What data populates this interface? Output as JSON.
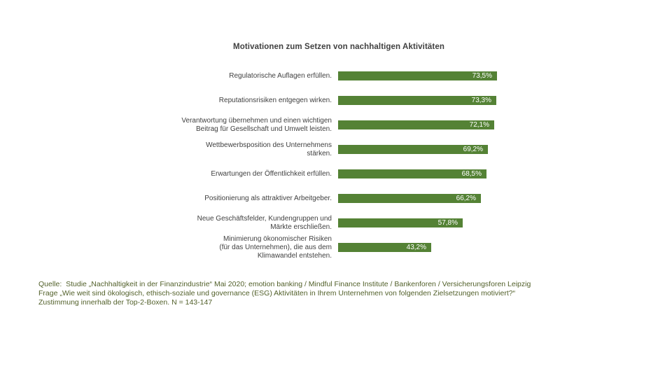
{
  "title": "Motivationen zum Setzen von nachhaltigen Aktivitäten",
  "chart_data": {
    "type": "bar",
    "orientation": "horizontal",
    "bar_color": "#548235",
    "value_label_color": "#ffffff",
    "label_color": "#404040",
    "xlim": [
      0,
      75
    ],
    "grid": false,
    "legend": "none",
    "categories": [
      "Regulatorische Auflagen erfüllen.",
      "Reputationsrisiken entgegen wirken.",
      "Verantwortung übernehmen und einen wichtigen\nBeitrag für Gesellschaft und Umwelt leisten.",
      "Wettbewerbsposition des Unternehmens\nstärken.",
      "Erwartungen der Öffentlichkeit erfüllen.",
      "Positionierung als attraktiver Arbeitgeber.",
      "Neue Geschäftsfelder, Kundengruppen und\nMärkte erschließen.",
      "Minimierung ökonomischer Risiken\n(für das Unternehmen), die aus dem\nKlimawandel entstehen."
    ],
    "values": [
      73.5,
      73.3,
      72.1,
      69.2,
      68.5,
      66.2,
      57.8,
      43.2
    ],
    "value_labels": [
      "73,5%",
      "73,3%",
      "72,1%",
      "69,2%",
      "68,5%",
      "66,2%",
      "57,8%",
      "43,2%"
    ]
  },
  "footer": {
    "lines": [
      "Quelle:  Studie „Nachhaltigkeit in der Finanzindustrie“ Mai 2020; emotion banking / Mindful Finance Institute / Bankenforen / Versicherungsforen Leipzig",
      "Frage „Wie weit sind ökologisch, ethisch-soziale und governance (ESG) Aktivitäten in Ihrem Unternehmen von folgenden Zielsetzungen motiviert?“",
      "Zustimmung innerhalb der Top-2-Boxen. N = 143-147"
    ],
    "text_color": "#52602a"
  }
}
